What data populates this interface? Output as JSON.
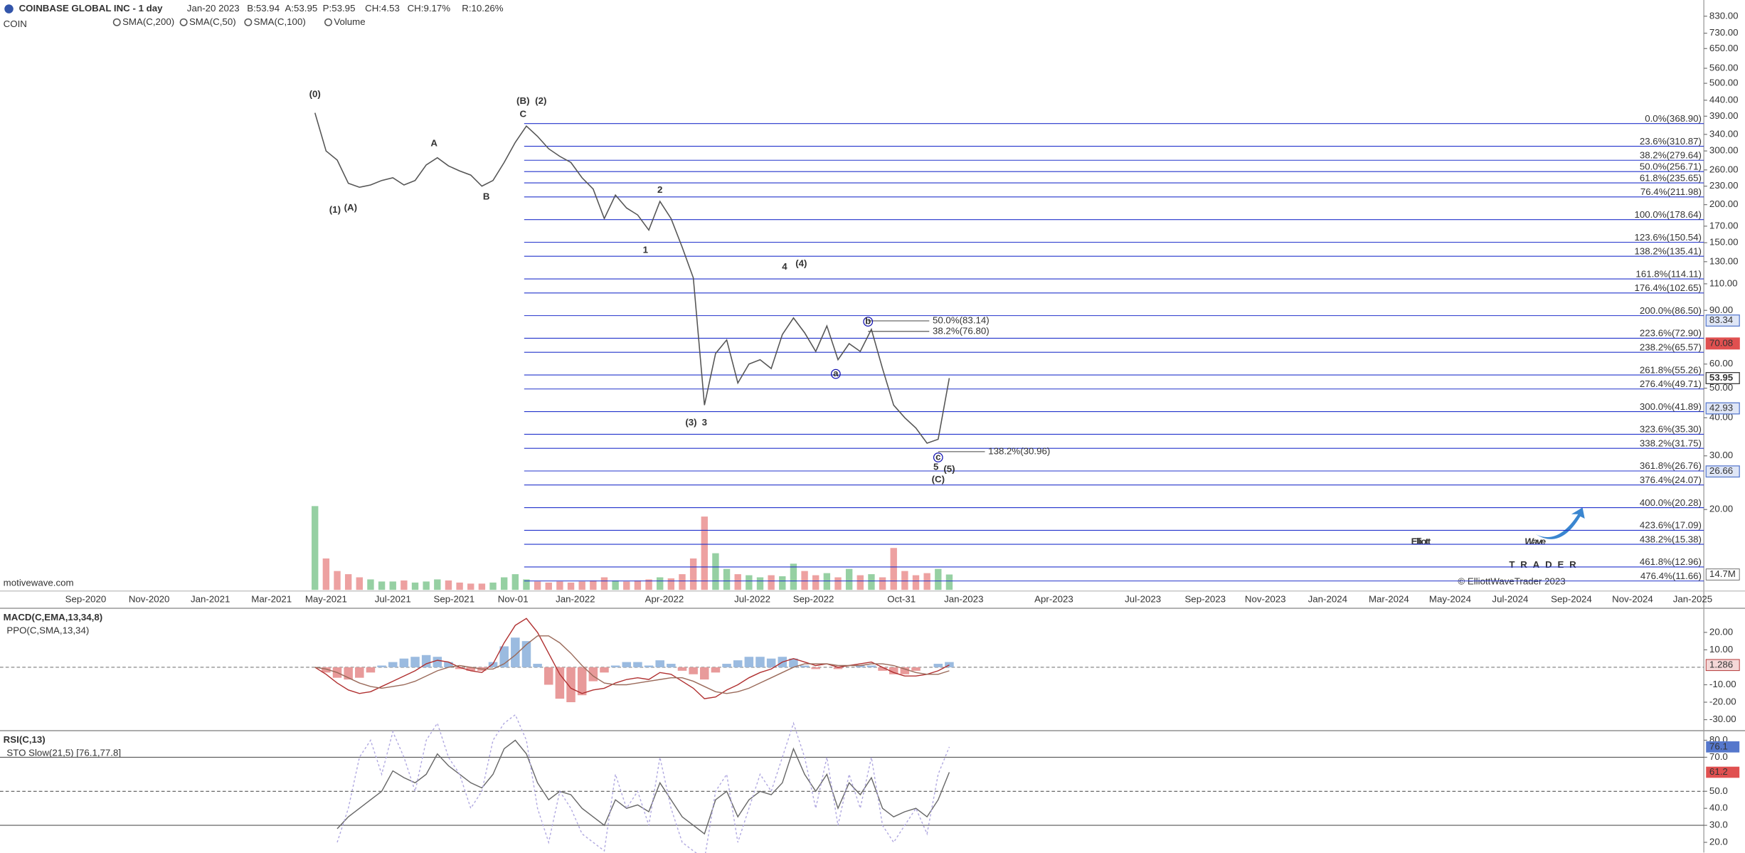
{
  "header": {
    "symbol": "COIN",
    "quote": [
      {
        "text": "Jan-20 2023",
        "color": "#666"
      },
      {
        "text": "B:53.94",
        "color": "#666"
      },
      {
        "text": "A:53.95",
        "color": "#666"
      },
      {
        "text": "P:53.95",
        "color": "#666"
      },
      {
        "text": "CH:4.53",
        "color": "#1a9a1a"
      },
      {
        "text": "CH:9.17%",
        "color": "#1a9a1a"
      },
      {
        "text": "R:10.26%",
        "color": "#e08a00"
      }
    ],
    "indicators": [
      {
        "name": "SMA(C,200)",
        "color": "#e06060"
      },
      {
        "name": "SMA(C,50)",
        "color": "#8ab0e0"
      },
      {
        "name": "SMA(C,100)",
        "color": "#80b090"
      },
      {
        "name": "Volume",
        "color": "#208020"
      }
    ],
    "watermark": "motivewave.com"
  },
  "logo": {
    "line1": "Elliott",
    "line2": "Wave",
    "line3": "TRADER",
    "copyright": "© ElliottWaveTrader 2023"
  },
  "chart_data": [
    {
      "type": "line",
      "title": "COINBASE GLOBAL INC - 1 day",
      "log_scale": true,
      "color": "#555555",
      "categories": [
        null,
        null,
        null,
        null,
        null,
        null,
        null,
        null,
        null,
        null,
        null,
        null,
        null,
        null,
        null,
        null,
        null,
        null,
        null,
        null,
        null,
        null,
        null,
        null,
        null,
        null,
        null,
        null,
        null,
        null,
        null,
        null,
        null,
        null,
        null,
        null,
        null,
        null,
        null,
        null,
        null,
        null,
        null,
        null,
        null,
        null,
        null,
        null,
        null,
        null,
        null,
        null,
        null,
        null,
        null,
        null,
        null,
        null
      ],
      "values": [
        400,
        300,
        280,
        235,
        228,
        232,
        240,
        245,
        232,
        240,
        270,
        285,
        268,
        258,
        250,
        230,
        240,
        275,
        320,
        362,
        335,
        305,
        288,
        275,
        245,
        225,
        180,
        215,
        195,
        185,
        165,
        205,
        180,
        145,
        115,
        44,
        65,
        72,
        52,
        60,
        62,
        58,
        75,
        85,
        76,
        66,
        80,
        62,
        70,
        66,
        78,
        58,
        44,
        40,
        37,
        33,
        34,
        53.95
      ],
      "ylim": [
        10.9,
        938
      ],
      "yticks": [
        {
          "value": 830,
          "label": "830.00"
        },
        {
          "value": 730,
          "label": "730.00"
        },
        {
          "value": 650,
          "label": "650.00"
        },
        {
          "value": 560,
          "label": "560.00"
        },
        {
          "value": 500,
          "label": "500.00"
        },
        {
          "value": 440,
          "label": "440.00"
        },
        {
          "value": 390,
          "label": "390.00"
        },
        {
          "value": 340,
          "label": "340.00"
        },
        {
          "value": 300,
          "label": "300.00"
        },
        {
          "value": 260,
          "label": "260.00"
        },
        {
          "value": 230,
          "label": "230.00"
        },
        {
          "value": 200,
          "label": "200.00"
        },
        {
          "value": 170,
          "label": "170.00"
        },
        {
          "value": 150,
          "label": "150.00"
        },
        {
          "value": 130,
          "label": "130.00"
        },
        {
          "value": 110,
          "label": "110.00"
        },
        {
          "value": 90,
          "label": "90.00"
        },
        {
          "value": 60,
          "label": "60.00"
        },
        {
          "value": 50,
          "label": "50.00"
        },
        {
          "value": 40,
          "label": "40.00"
        },
        {
          "value": 30,
          "label": "30.00"
        },
        {
          "value": 20,
          "label": "20.00"
        }
      ],
      "x_axis_labels": [
        "Sep-2020",
        "Nov-2020",
        "Jan-2021",
        "Mar-2021",
        "May-2021",
        "Jul-2021",
        "Sep-2021",
        "Nov-01",
        "Jan-2022",
        "Apr-2022",
        "Jul-2022",
        "Sep-2022",
        "Oct-31",
        "Jan-2023",
        "Apr-2023",
        "Jul-2023",
        "Sep-2023",
        "Nov-2023",
        "Jan-2024",
        "Mar-2024",
        "May-2024",
        "Jul-2024",
        "Sep-2024",
        "Nov-2024",
        "Jan-2025"
      ],
      "volume": {
        "name": "Volume",
        "values": [
          80,
          30,
          18,
          15,
          12,
          10,
          8,
          8,
          9,
          7,
          8,
          10,
          9,
          7,
          6,
          6,
          7,
          12,
          15,
          10,
          8,
          7,
          8,
          7,
          8,
          9,
          12,
          9,
          8,
          9,
          10,
          12,
          11,
          15,
          30,
          70,
          35,
          20,
          15,
          14,
          12,
          14,
          13,
          25,
          18,
          14,
          16,
          12,
          20,
          14,
          15,
          12,
          40,
          18,
          14,
          16,
          20,
          14.7
        ],
        "ylim": [
          0,
          85
        ],
        "last_label": {
          "value": 14.7,
          "label": "14.7M"
        },
        "up_color": "#7cc48c",
        "down_color": "#e88a8a"
      },
      "fib_color": "#2233cc",
      "fib_levels": [
        {
          "label": "0.0%(368.90)",
          "value": 368.9
        },
        {
          "label": "23.6%(310.87)",
          "value": 310.87
        },
        {
          "label": "38.2%(279.64)",
          "value": 279.64
        },
        {
          "label": "50.0%(256.71)",
          "value": 256.71
        },
        {
          "label": "61.8%(235.65)",
          "value": 235.65
        },
        {
          "label": "76.4%(211.98)",
          "value": 211.98
        },
        {
          "label": "100.0%(178.64)",
          "value": 178.64
        },
        {
          "label": "123.6%(150.54)",
          "value": 150.54
        },
        {
          "label": "138.2%(135.41)",
          "value": 135.41
        },
        {
          "label": "161.8%(114.11)",
          "value": 114.11
        },
        {
          "label": "176.4%(102.65)",
          "value": 102.65
        },
        {
          "label": "200.0%(86.50)",
          "value": 86.5
        },
        {
          "label": "223.6%(72.90)",
          "value": 72.9
        },
        {
          "label": "238.2%(65.57)",
          "value": 65.57
        },
        {
          "label": "261.8%(55.26)",
          "value": 55.26
        },
        {
          "label": "276.4%(49.71)",
          "value": 49.71
        },
        {
          "label": "300.0%(41.89)",
          "value": 41.89
        },
        {
          "label": "323.6%(35.30)",
          "value": 35.3
        },
        {
          "label": "338.2%(31.75)",
          "value": 31.75
        },
        {
          "label": "361.8%(26.76)",
          "value": 26.76
        },
        {
          "label": "376.4%(24.07)",
          "value": 24.07
        },
        {
          "label": "400.0%(20.28)",
          "value": 20.28
        },
        {
          "label": "423.6%(17.09)",
          "value": 17.09
        },
        {
          "label": "438.2%(15.38)",
          "value": 15.38
        },
        {
          "label": "461.8%(12.96)",
          "value": 12.96
        },
        {
          "label": "476.4%(11.66)",
          "value": 11.66
        }
      ],
      "extra_levels": [
        {
          "label": "50.0%(83.14)",
          "value": 83.14
        },
        {
          "label": "38.2%(76.80)",
          "value": 76.8
        },
        {
          "label": "138.2%(30.96)",
          "value": 30.96
        }
      ],
      "price_badges": [
        {
          "value": 83.34,
          "color": "#5577cc"
        },
        {
          "value": 70.08,
          "color": "#e05050"
        },
        {
          "value": 42.93,
          "color": "#5577cc"
        },
        {
          "value": 26.66,
          "color": "#5577cc"
        }
      ],
      "wave_labels": [
        {
          "text": "(0)",
          "color": "#1010b0"
        },
        {
          "text": "(1)",
          "color": "#c00000"
        },
        {
          "text": "(A)",
          "color": "#1010b0"
        },
        {
          "text": "A",
          "color": "#1010b0"
        },
        {
          "text": "B",
          "color": "#1010b0"
        },
        {
          "text": "(B)",
          "color": "#1010b0"
        },
        {
          "text": "(2)",
          "color": "#c00000"
        },
        {
          "text": "C",
          "color": "#1010b0"
        },
        {
          "text": "2",
          "color": "#1010b0"
        },
        {
          "text": "1",
          "color": "#1010b0"
        },
        {
          "text": "4",
          "color": "#1010b0"
        },
        {
          "text": "(4)",
          "color": "#c00000"
        },
        {
          "text": "(3)",
          "color": "#c00000"
        },
        {
          "text": "3",
          "color": "#1010b0"
        },
        {
          "text": "b",
          "color": "#1010b0",
          "circled": true
        },
        {
          "text": "a",
          "color": "#1010b0",
          "circled": true
        },
        {
          "text": "c",
          "color": "#1010b0",
          "circled": true
        },
        {
          "text": "5",
          "color": "#1010b0"
        },
        {
          "text": "(5)",
          "color": "#c00000"
        },
        {
          "text": "(C)",
          "color": "#1010b0"
        }
      ]
    },
    {
      "type": "macd",
      "title": "MACD(C,EMA,13,34,8)",
      "subtitle": "PPO(C,SMA,13,34)",
      "ylim": [
        -36,
        33.5
      ],
      "yticks": [
        {
          "value": 20,
          "label": "20.00"
        },
        {
          "value": 10,
          "label": "10.00"
        },
        {
          "value": -10,
          "label": "-10.00"
        },
        {
          "value": -20,
          "label": "-20.00"
        },
        {
          "value": -30,
          "label": "-30.00"
        }
      ],
      "series": [
        {
          "color": "#b03030",
          "values": [
            0,
            -4,
            -9,
            -13,
            -15,
            -14,
            -11,
            -8,
            -5,
            -2,
            2,
            4,
            3,
            0,
            -2,
            -3,
            2,
            14,
            24,
            28,
            20,
            8,
            -4,
            -12,
            -15,
            -13,
            -12,
            -9,
            -7,
            -6,
            -7,
            -3,
            -4,
            -8,
            -12,
            -18,
            -17,
            -13,
            -10,
            -6,
            -3,
            -1,
            3,
            5,
            3,
            1,
            2,
            0,
            1,
            2,
            3,
            0,
            -3,
            -5,
            -5,
            -4,
            -2,
            1.286
          ]
        },
        {
          "color": "#9a6a5a",
          "values": [
            0,
            -1,
            -3,
            -6,
            -9,
            -11,
            -12,
            -11,
            -10,
            -8,
            -5,
            -2,
            0,
            1,
            0,
            -1,
            -1,
            2,
            7,
            13,
            18,
            18,
            14,
            8,
            1,
            -5,
            -9,
            -10,
            -10,
            -9,
            -8,
            -7,
            -6,
            -6,
            -8,
            -11,
            -14,
            -15,
            -14,
            -12,
            -9,
            -6,
            -3,
            0,
            2,
            2,
            2,
            1,
            1,
            1,
            2,
            2,
            1,
            -1,
            -3,
            -4,
            -4,
            -2
          ]
        }
      ],
      "histogram": {
        "values": [
          0,
          -3,
          -6,
          -7,
          -6,
          -3,
          1,
          3,
          5,
          6,
          7,
          6,
          3,
          -1,
          -2,
          -2,
          3,
          12,
          17,
          15,
          2,
          -10,
          -18,
          -20,
          -16,
          -8,
          -3,
          1,
          3,
          3,
          1,
          4,
          2,
          -2,
          -4,
          -7,
          -3,
          2,
          4,
          6,
          6,
          5,
          6,
          5,
          1,
          -1,
          0,
          -1,
          0,
          1,
          1,
          -2,
          -4,
          -4,
          -2,
          0,
          2,
          3
        ],
        "up_color": "#9bbbe0",
        "down_color": "#e89a9a"
      }
    },
    {
      "type": "rsi",
      "title": "RSI(C,13)",
      "subtitle": "STO Slow(21,5) [76.1,77.8]",
      "ylim": [
        14,
        85.3
      ],
      "yticks": [
        {
          "value": 80,
          "label": "80.0"
        },
        {
          "value": 70,
          "label": "70.0"
        },
        {
          "value": 50,
          "label": "50.0"
        },
        {
          "value": 40,
          "label": "40.0"
        },
        {
          "value": 30,
          "label": "30.0"
        },
        {
          "value": 20,
          "label": "20.0"
        }
      ],
      "reference_lines": [
        {
          "value": 70,
          "style": "solid"
        },
        {
          "value": 50,
          "style": "dashed"
        },
        {
          "value": 30,
          "style": "solid"
        }
      ],
      "series": [
        {
          "color": "#666666",
          "values": [
            null,
            null,
            28,
            35,
            40,
            45,
            50,
            62,
            58,
            55,
            60,
            72,
            65,
            60,
            55,
            52,
            60,
            75,
            80,
            72,
            55,
            45,
            50,
            48,
            40,
            35,
            30,
            45,
            40,
            42,
            38,
            55,
            45,
            35,
            30,
            25,
            45,
            50,
            35,
            45,
            50,
            48,
            55,
            75,
            60,
            50,
            60,
            40,
            55,
            48,
            58,
            40,
            35,
            38,
            40,
            35,
            45,
            61.2
          ],
          "badge_color": "#e05050",
          "dash": ""
        },
        {
          "color": "#b0a8e0",
          "values": [
            null,
            null,
            20,
            40,
            70,
            80,
            60,
            85,
            70,
            50,
            80,
            90,
            70,
            60,
            40,
            50,
            80,
            90,
            95,
            80,
            40,
            20,
            50,
            40,
            25,
            20,
            15,
            60,
            40,
            50,
            30,
            70,
            40,
            20,
            15,
            10,
            50,
            60,
            20,
            40,
            60,
            50,
            70,
            90,
            70,
            40,
            70,
            30,
            60,
            40,
            70,
            30,
            20,
            30,
            40,
            25,
            60,
            76.1
          ],
          "badge_color": "#5577cc",
          "dash": "2,2"
        }
      ]
    }
  ]
}
